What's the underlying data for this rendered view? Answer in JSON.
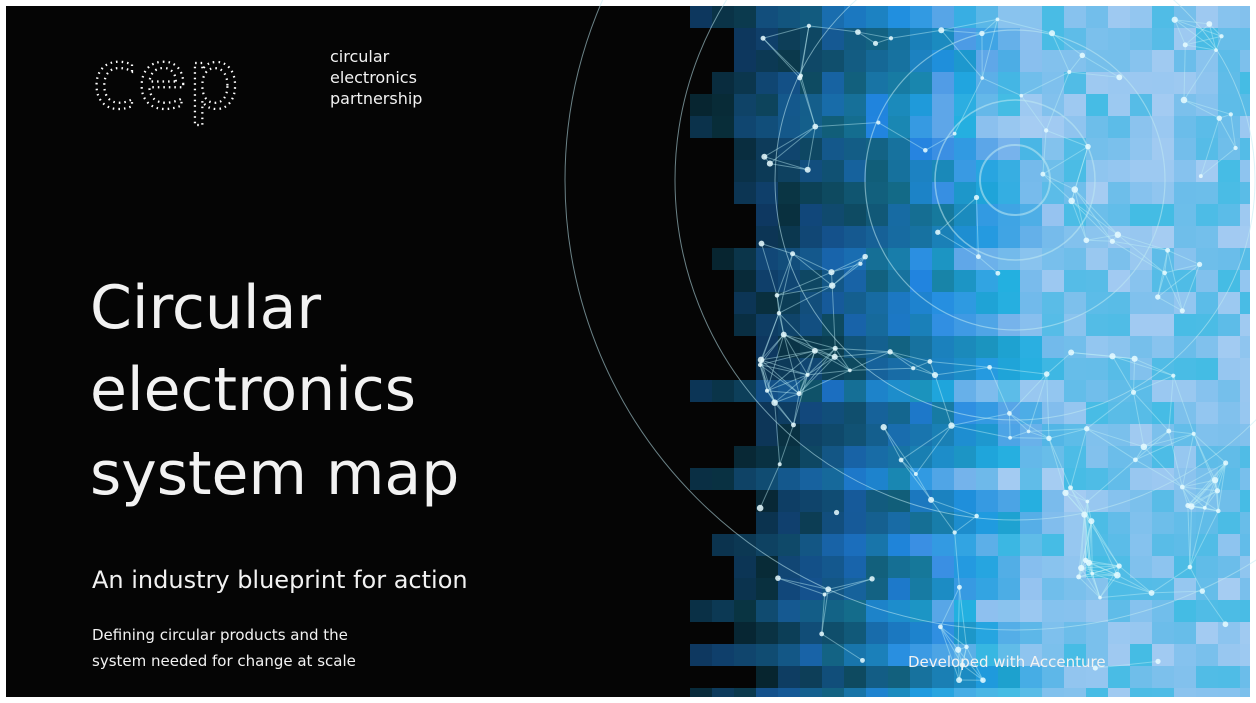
{
  "logo": {
    "mark": "cep",
    "lines": [
      "circular",
      "electronics",
      "partnership"
    ]
  },
  "title": {
    "lines": [
      "Circular",
      "electronics",
      "system map"
    ]
  },
  "subtitle": "An industry blueprint for action",
  "description": {
    "lines": [
      "Defining circular products and the",
      "system needed for change at scale"
    ]
  },
  "credit": "Developed with Accenture"
}
